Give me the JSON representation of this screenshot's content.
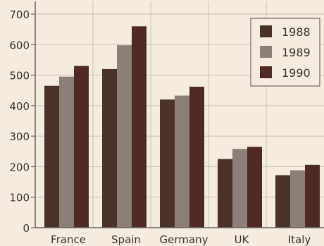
{
  "chart_data": {
    "type": "bar",
    "title": "",
    "xlabel": "",
    "ylabel": "",
    "categories": [
      "France",
      "Spain",
      "Germany",
      "UK",
      "Italy"
    ],
    "series": [
      {
        "name": "1988",
        "values": [
          465,
          520,
          420,
          225,
          172
        ]
      },
      {
        "name": "1989",
        "values": [
          495,
          598,
          433,
          258,
          188
        ]
      },
      {
        "name": "1990",
        "values": [
          530,
          660,
          462,
          265,
          206
        ]
      }
    ],
    "ylim": [
      0,
      700
    ],
    "yticks": [
      "0",
      "100",
      "200",
      "300",
      "400",
      "500",
      "600",
      "700"
    ],
    "grid": true,
    "legend_position": "top-right",
    "colors": {
      "1988": "#4a3228",
      "1989": "#8b7f78",
      "1990": "#4f2a24",
      "grid": "#c9c2b6",
      "axis": "#6b6460",
      "background": "#f4eddf",
      "legend_border": "#6e6762"
    }
  }
}
